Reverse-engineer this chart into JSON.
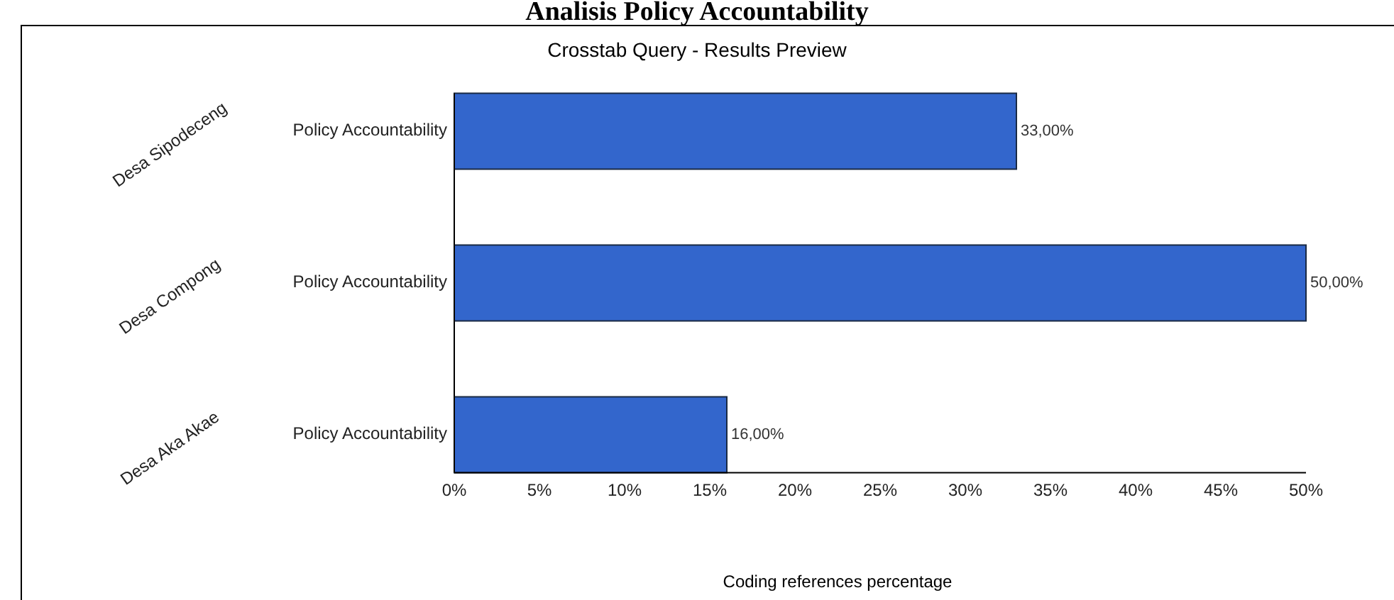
{
  "chart_data": {
    "type": "bar",
    "orientation": "horizontal",
    "title": "Analisis Policy Accountability",
    "subtitle": "Crosstab Query - Results Preview",
    "xlabel": "Coding references percentage",
    "categories": [
      "Policy Accountability",
      "Policy Accountability",
      "Policy Accountability"
    ],
    "annotations": [
      "Desa Sipodeceng",
      "Desa Compong",
      "Desa Aka Akae"
    ],
    "series": [
      {
        "color": "#3366cc",
        "values": [
          33,
          50,
          16
        ],
        "value_labels": [
          "33,00%",
          "50,00%",
          "16,00%"
        ]
      }
    ],
    "xlim": [
      0,
      50
    ],
    "xticks": [
      {
        "value": 0,
        "label": "0%"
      },
      {
        "value": 5,
        "label": "5%"
      },
      {
        "value": 10,
        "label": "10%"
      },
      {
        "value": 15,
        "label": "15%"
      },
      {
        "value": 20,
        "label": "20%"
      },
      {
        "value": 25,
        "label": "25%"
      },
      {
        "value": 30,
        "label": "30%"
      },
      {
        "value": 35,
        "label": "35%"
      },
      {
        "value": 40,
        "label": "40%"
      },
      {
        "value": 45,
        "label": "45%"
      },
      {
        "value": 50,
        "label": "50%"
      }
    ],
    "grid": false
  }
}
